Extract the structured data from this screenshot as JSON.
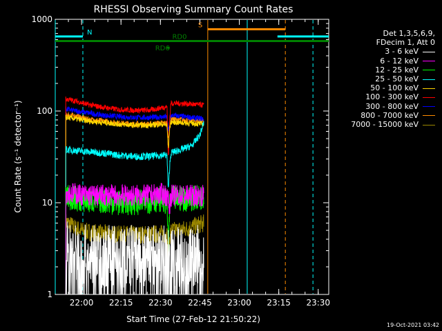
{
  "chart_data": {
    "type": "line",
    "title": "RHESSI Observing Summary Count Rates",
    "xlabel": "Start Time (27-Feb-12 21:50:22)",
    "ylabel": "Count Rate (s⁻¹ detector⁻¹)",
    "yscale": "log",
    "ylim": [
      1,
      1000
    ],
    "y_ticks": [
      "1",
      "10",
      "100",
      "1000"
    ],
    "x_ticks": [
      "22:00",
      "22:15",
      "22:30",
      "22:45",
      "23:00",
      "23:15",
      "23:30"
    ],
    "x_tick_minutes": [
      10,
      25,
      40,
      55,
      70,
      85,
      100
    ],
    "xlim_minutes": [
      0,
      104
    ],
    "legend_header": [
      "Det 1,3,5,6,9,",
      "FDecim 1, Att 0"
    ],
    "series": [
      {
        "name": "3 - 6 keV",
        "color": "#ffffff",
        "x": [
          0,
          3.7,
          4,
          7,
          10,
          14,
          17,
          19,
          22,
          23,
          30,
          35,
          37,
          42.5,
          43,
          43.7,
          44,
          50,
          55,
          56.5
        ],
        "y": [
          null,
          null,
          3,
          2.8,
          2.6,
          2.6,
          2.4,
          2.6,
          2.6,
          2.5,
          2.6,
          2.5,
          2.6,
          2.7,
          2.6,
          2.5,
          2.7,
          2.6,
          2.6,
          2.7
        ],
        "noise": 0.35
      },
      {
        "name": "6 - 12 keV",
        "color": "#ff00ff",
        "x": [
          4,
          8,
          12,
          18,
          24,
          30,
          36,
          40,
          42.5,
          43.5,
          44,
          50,
          56.5
        ],
        "y": [
          13,
          12.5,
          12,
          12,
          12,
          12,
          12,
          12.5,
          12,
          9,
          12,
          12,
          12
        ],
        "noise": 0.12
      },
      {
        "name": "12 - 25 keV",
        "color": "#00ff00",
        "x": [
          4,
          8,
          12,
          18,
          24,
          30,
          36,
          40,
          42.5,
          43,
          43.5,
          44,
          50,
          56.5
        ],
        "y": [
          11.5,
          11,
          10.5,
          10.5,
          10,
          10,
          10.5,
          11,
          10,
          3,
          9,
          11,
          11,
          11.5
        ],
        "noise": 0.14
      },
      {
        "name": "25 - 50 keV",
        "color": "#00ffff",
        "x": [
          4,
          8,
          12,
          18,
          24,
          30,
          36,
          40,
          42.5,
          43,
          43.5,
          44,
          48,
          52,
          55,
          56.5
        ],
        "y": [
          38,
          37,
          36,
          35,
          33,
          32,
          32,
          33,
          33,
          13,
          25,
          35,
          38,
          42,
          55,
          75
        ],
        "noise": 0.04
      },
      {
        "name": "50 - 100 keV",
        "color": "#ffd700",
        "x": [
          4,
          8,
          12,
          18,
          24,
          30,
          36,
          40,
          42.5,
          43,
          43.5,
          44,
          50,
          56.5
        ],
        "y": [
          85,
          82,
          78,
          75,
          72,
          70,
          70,
          72,
          70,
          38,
          65,
          76,
          74,
          72
        ],
        "noise": 0.03
      },
      {
        "name": "100 - 300 keV",
        "color": "#ff0000",
        "x": [
          4,
          8,
          12,
          18,
          24,
          30,
          36,
          40,
          42.5,
          43,
          43.5,
          44,
          50,
          56.5
        ],
        "y": [
          135,
          128,
          118,
          110,
          104,
          102,
          102,
          108,
          112,
          30,
          80,
          122,
          120,
          116
        ],
        "noise": 0.03
      },
      {
        "name": "300 - 800 keV",
        "color": "#0000ff",
        "x": [
          4,
          8,
          12,
          18,
          24,
          30,
          36,
          40,
          42.5,
          43,
          43.5,
          44,
          50,
          56.5
        ],
        "y": [
          105,
          100,
          96,
          90,
          87,
          85,
          85,
          86,
          86,
          60,
          75,
          90,
          86,
          82
        ],
        "noise": 0.03
      },
      {
        "name": "800 - 7000 keV",
        "color": "#ff8c00",
        "x": [
          4,
          8,
          12,
          18,
          24,
          30,
          36,
          40,
          42.5,
          43,
          43.5,
          44,
          50,
          56.5
        ],
        "y": [
          92,
          88,
          82,
          78,
          74,
          72,
          72,
          74,
          74,
          50,
          68,
          82,
          80,
          78
        ],
        "noise": 0.03
      },
      {
        "name": "7000 - 15000 keV",
        "color": "#9b8700",
        "x": [
          4,
          8,
          12,
          18,
          24,
          30,
          36,
          40,
          42.5,
          43,
          43.5,
          44,
          50,
          56.5
        ],
        "y": [
          6.2,
          5.2,
          4.8,
          4.6,
          4.5,
          4.5,
          4.5,
          4.6,
          4.5,
          2.2,
          4.3,
          4.9,
          5.2,
          6.0
        ],
        "noise": 0.1
      }
    ],
    "flag_bars": [
      {
        "label": "N",
        "color": "#00ffff",
        "y": 650,
        "segments": [
          [
            0,
            10.5
          ],
          [
            84.5,
            104
          ]
        ]
      },
      {
        "label": "S",
        "color": "#ff8c00",
        "y": 780,
        "segments": [
          [
            58,
            87.5
          ]
        ]
      },
      {
        "label": "RD0",
        "color": "#008000",
        "y": 580,
        "segments": [
          [
            0,
            104
          ]
        ]
      },
      {
        "label": "RD6",
        "color": "#008000",
        "y": 490,
        "segments": [
          [
            42.5,
            43.5
          ]
        ]
      }
    ],
    "vlines": [
      {
        "x": 0,
        "color": "#00ffff",
        "style": "solid"
      },
      {
        "x": 10.5,
        "color": "#00ffff",
        "style": "dashed"
      },
      {
        "x": 58,
        "color": "#ff8c00",
        "style": "solid"
      },
      {
        "x": 73,
        "color": "#00ffff",
        "style": "solid"
      },
      {
        "x": 87.5,
        "color": "#ff8c00",
        "style": "dashed"
      },
      {
        "x": 98,
        "color": "#00ffff",
        "style": "dashed"
      }
    ]
  },
  "footer": {
    "timestamp": "19-Oct-2021 03:42"
  }
}
